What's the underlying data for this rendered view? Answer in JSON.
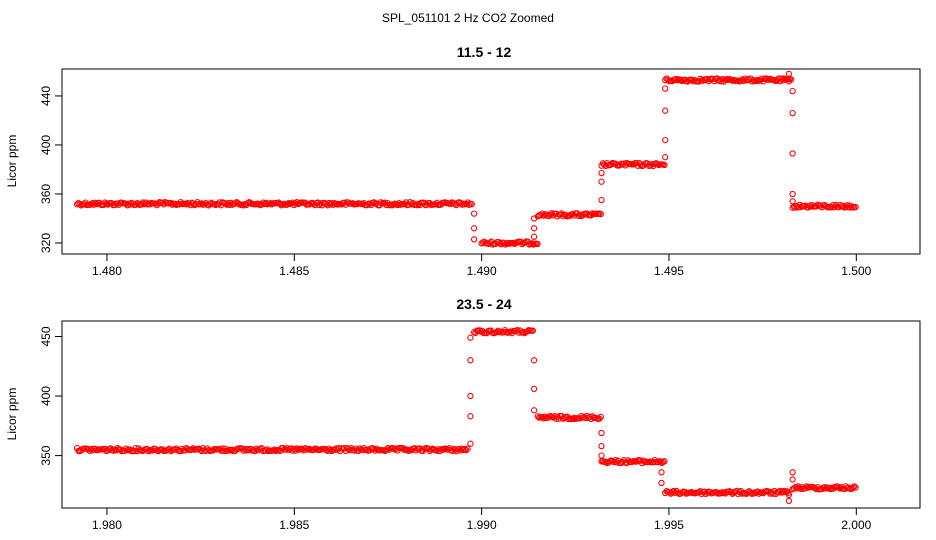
{
  "figure_title": "SPL_051101  2 Hz CO2 Zoomed",
  "colors": {
    "points": "#ff0000",
    "frame": "#000000",
    "background": "#ffffff"
  },
  "chart_data": [
    {
      "type": "scatter",
      "title": "11.5 - 12",
      "xlabel": "",
      "ylabel": "Licor ppm",
      "xlim": [
        1.4788,
        1.5017
      ],
      "ylim": [
        311,
        462
      ],
      "xticks": [
        "1.480",
        "1.485",
        "1.490",
        "1.495",
        "1.500"
      ],
      "xtick_values": [
        1.48,
        1.485,
        1.49,
        1.495,
        1.5
      ],
      "yticks": [
        "320",
        "360",
        "400",
        "440"
      ],
      "ytick_values": [
        320,
        360,
        400,
        440
      ],
      "series": [
        {
          "segments": [
            {
              "x0": 1.4792,
              "x1": 1.48975,
              "y": 352
            },
            {
              "x0": 1.49,
              "x1": 1.4915,
              "y": 320
            },
            {
              "x0": 1.4915,
              "x1": 1.4932,
              "y": 343
            },
            {
              "x0": 1.4932,
              "x1": 1.4949,
              "y": 384
            },
            {
              "x0": 1.4949,
              "x1": 1.4983,
              "y": 453
            },
            {
              "x0": 1.4983,
              "x1": 1.5,
              "y": 350
            }
          ],
          "transitions": [
            {
              "x": 1.4898,
              "y": [
                344,
                332,
                323
              ]
            },
            {
              "x": 1.4914,
              "y": [
                325,
                332,
                340
              ]
            },
            {
              "x": 1.4932,
              "y": [
                355,
                370,
                377
              ]
            },
            {
              "x": 1.4949,
              "y": [
                390,
                404,
                428,
                446
              ]
            },
            {
              "x": 1.4982,
              "y": [
                458,
                452
              ]
            },
            {
              "x": 1.4983,
              "y": [
                444,
                426,
                393,
                360,
                354
              ]
            }
          ]
        }
      ]
    },
    {
      "type": "scatter",
      "title": "23.5 - 24",
      "xlabel": "",
      "ylabel": "Licor ppm",
      "xlim": [
        1.9788,
        2.0017
      ],
      "ylim": [
        306,
        463
      ],
      "xticks": [
        "1.980",
        "1.985",
        "1.990",
        "1.995",
        "2.000"
      ],
      "xtick_values": [
        1.98,
        1.985,
        1.99,
        1.995,
        2.0
      ],
      "yticks": [
        "350",
        "400",
        "450"
      ],
      "ytick_values": [
        350,
        400,
        450
      ],
      "series": [
        {
          "segments": [
            {
              "x0": 1.9792,
              "x1": 1.98965,
              "y": 355
            },
            {
              "x0": 1.9898,
              "x1": 1.9914,
              "y": 454
            },
            {
              "x0": 1.9915,
              "x1": 1.9932,
              "y": 382
            },
            {
              "x0": 1.9932,
              "x1": 1.9949,
              "y": 345
            },
            {
              "x0": 1.9949,
              "x1": 1.9982,
              "y": 319
            },
            {
              "x0": 1.9983,
              "x1": 2.0,
              "y": 323
            }
          ],
          "transitions": [
            {
              "x": 1.9897,
              "y": [
                360,
                383,
                400,
                430,
                449
              ]
            },
            {
              "x": 1.9914,
              "y": [
                430,
                406,
                388
              ]
            },
            {
              "x": 1.9932,
              "y": [
                369,
                358,
                350
              ]
            },
            {
              "x": 1.9948,
              "y": [
                336,
                327
              ]
            },
            {
              "x": 1.9982,
              "y": [
                312,
                317
              ]
            },
            {
              "x": 1.9983,
              "y": [
                336,
                330
              ]
            }
          ]
        }
      ]
    }
  ]
}
